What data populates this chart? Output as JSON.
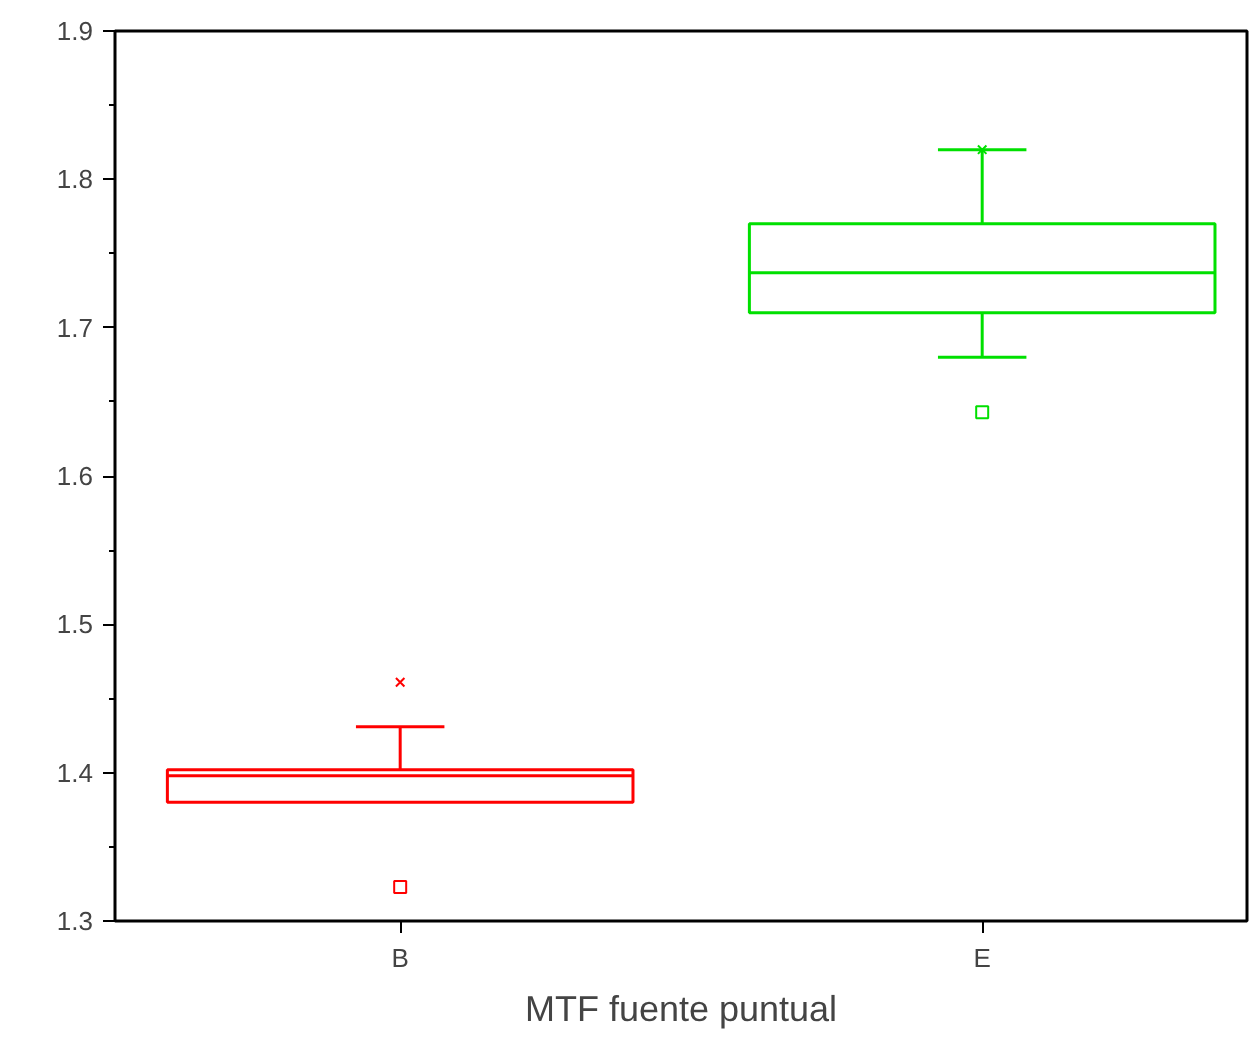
{
  "chart_data": {
    "type": "box",
    "xlabel": "MTF fuente puntual",
    "categories": [
      "B",
      "E"
    ],
    "series": [
      {
        "color": "#ff0000",
        "boxes": [
          {
            "low": 1.38,
            "q1": 1.38,
            "median": 1.398,
            "q3": 1.402,
            "high": 1.431,
            "outliers": [
              1.461,
              1.323
            ]
          },
          null
        ]
      },
      {
        "color": "#00e000",
        "boxes": [
          null,
          {
            "low": 1.68,
            "q1": 1.71,
            "median": 1.737,
            "q3": 1.77,
            "high": 1.82,
            "outliers": [
              1.82,
              1.643
            ]
          }
        ]
      }
    ],
    "ylim": [
      1.3,
      1.9
    ],
    "yticks": [
      1.3,
      1.4,
      1.5,
      1.6,
      1.7,
      1.8,
      1.9
    ],
    "grid": false
  }
}
